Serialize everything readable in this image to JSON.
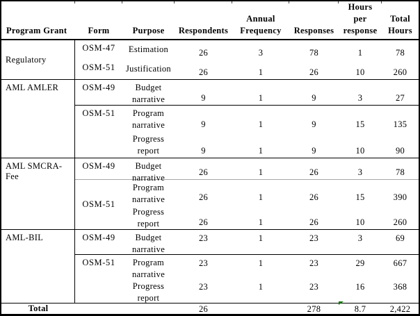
{
  "table": {
    "headers": {
      "program_grant": "Program Grant",
      "form": "Form",
      "purpose": "Purpose",
      "respondents": "Respondents",
      "annual_l1": "Annual",
      "annual_l2": "Frequency",
      "responses": "Responses",
      "hours_l1": "Hours",
      "hours_l2": "per",
      "hours_l3": "response",
      "total_l1": "Total",
      "total_l2": "Hours"
    },
    "sections": [
      {
        "grant": "Regulatory",
        "rows": [
          {
            "form": "OSM-47",
            "purpose_lines": [
              "Estimation"
            ],
            "respondents": "26",
            "frequency": "3",
            "responses": "78",
            "hours_per_response": "1",
            "total_hours": "78"
          },
          {
            "form": "OSM-51",
            "purpose_lines": [
              "Justification"
            ],
            "respondents": "26",
            "frequency": "1",
            "responses": "26",
            "hours_per_response": "10",
            "total_hours": "260"
          }
        ]
      },
      {
        "grant": "AML AMLER",
        "rows": [
          {
            "form": "OSM-49",
            "purpose_lines": [
              "Budget",
              "narrative"
            ],
            "respondents": "9",
            "frequency": "1",
            "responses": "9",
            "hours_per_response": "3",
            "total_hours": "27"
          },
          {
            "form": "OSM-51",
            "purpose_lines": [
              "Program",
              "narrative"
            ],
            "respondents": "9",
            "frequency": "1",
            "responses": "9",
            "hours_per_response": "15",
            "total_hours": "135"
          },
          {
            "form": "",
            "purpose_lines": [
              "Progress",
              "report"
            ],
            "respondents": "9",
            "frequency": "1",
            "responses": "9",
            "hours_per_response": "10",
            "total_hours": "90"
          }
        ]
      },
      {
        "grant": "AML SMCRA-Fee",
        "rows": [
          {
            "form": "OSM-49",
            "purpose_lines": [
              "Budget",
              "narrative"
            ],
            "respondents": "26",
            "frequency": "1",
            "responses": "26",
            "hours_per_response": "3",
            "total_hours": "78"
          },
          {
            "form": "OSM-51",
            "purpose_lines": [
              "Program",
              "narrative"
            ],
            "respondents": "26",
            "frequency": "1",
            "responses": "26",
            "hours_per_response": "15",
            "total_hours": "390"
          },
          {
            "form": "",
            "purpose_lines": [
              "Progress",
              "report"
            ],
            "respondents": "26",
            "frequency": "1",
            "responses": "26",
            "hours_per_response": "10",
            "total_hours": "260"
          }
        ]
      },
      {
        "grant": "AML-BIL",
        "rows": [
          {
            "form": "OSM-49",
            "purpose_lines": [
              "Budget",
              "narrative"
            ],
            "respondents": "23",
            "frequency": "1",
            "responses": "23",
            "hours_per_response": "3",
            "total_hours": "69"
          },
          {
            "form": "OSM-51",
            "purpose_lines": [
              "Program",
              "narrative"
            ],
            "respondents": "23",
            "frequency": "1",
            "responses": "23",
            "hours_per_response": "29",
            "total_hours": "667"
          },
          {
            "form": "",
            "purpose_lines": [
              "Progress",
              "report"
            ],
            "respondents": "23",
            "frequency": "1",
            "responses": "23",
            "hours_per_response": "16",
            "total_hours": "368"
          }
        ]
      }
    ],
    "total_row": {
      "label": "Total",
      "respondents": "26",
      "annual_frequency": "",
      "responses": "278",
      "hours_per_response": "8.7",
      "total_hours": "2,422"
    }
  },
  "colors": {
    "border": "#000000",
    "gray_divider": "#a6a6a6",
    "flag_green": "#067a06"
  }
}
